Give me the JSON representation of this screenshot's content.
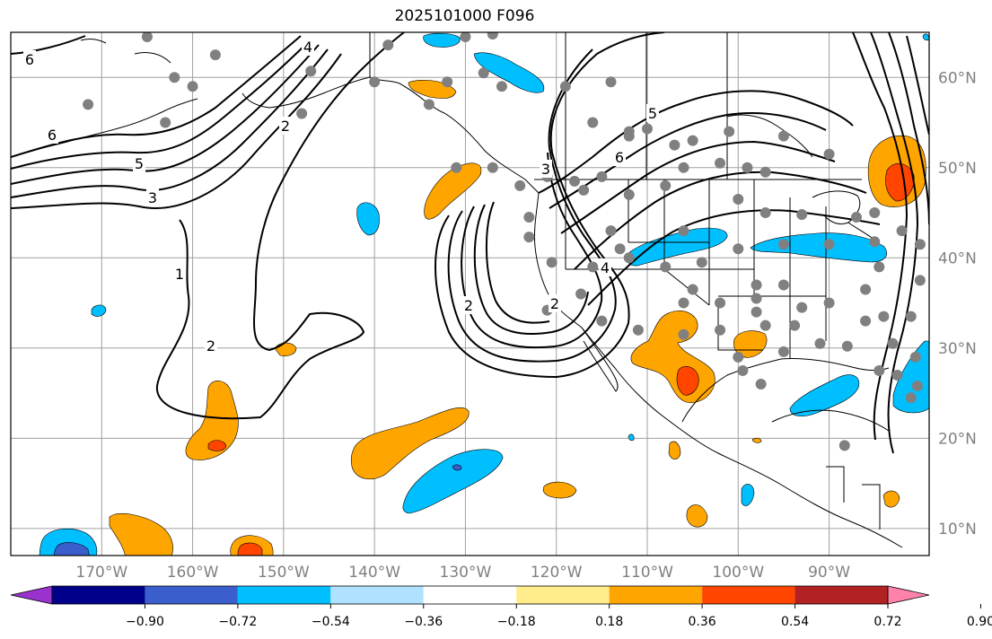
{
  "title": "2025101000 F096",
  "map": {
    "lon_range": [
      -180,
      -79
    ],
    "lat_range": [
      7,
      65
    ],
    "grid_lons": [
      -170,
      -160,
      -150,
      -140,
      -130,
      -120,
      -110,
      -100,
      -90
    ],
    "grid_lats": [
      10,
      20,
      30,
      40,
      50,
      60
    ],
    "lon_labels": [
      "170°W",
      "160°W",
      "150°W",
      "140°W",
      "130°W",
      "120°W",
      "110°W",
      "100°W",
      "90°W"
    ],
    "lat_labels": [
      "10°N",
      "20°N",
      "30°N",
      "40°N",
      "50°N",
      "60°N"
    ],
    "contour_labels": [
      "6",
      "6",
      "5",
      "3",
      "1",
      "2",
      "2",
      "4",
      "2",
      "3",
      "2",
      "4",
      "5",
      "6"
    ],
    "station_marker_color": "#808080"
  },
  "colorbar": {
    "colors": [
      "#9a32cd",
      "#00008b",
      "#3a5fcd",
      "#00bfff",
      "#b0e2ff",
      "#ffffff",
      "#ffec8b",
      "#ffa500",
      "#ff4500",
      "#b22222",
      "#ff82ab"
    ],
    "tick_labels": [
      "−0.90",
      "−0.72",
      "−0.54",
      "−0.36",
      "−0.18",
      "0.18",
      "0.36",
      "0.54",
      "0.72",
      "0.90"
    ]
  }
}
